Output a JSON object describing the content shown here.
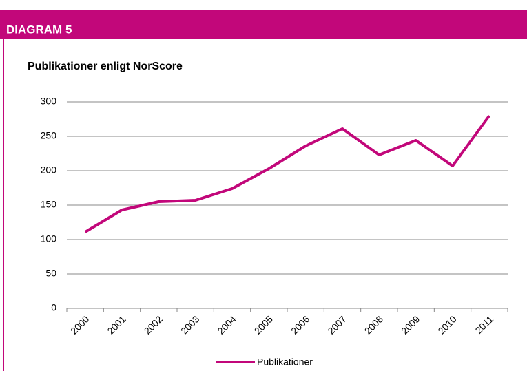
{
  "header": {
    "title": "DIAGRAM 5"
  },
  "chart_data": {
    "type": "line",
    "title": "Publikationer enligt NorScore",
    "categories": [
      "2000",
      "2001",
      "2002",
      "2003",
      "2004",
      "2005",
      "2006",
      "2007",
      "2008",
      "2009",
      "2010",
      "2011"
    ],
    "series": [
      {
        "name": "Publikationer",
        "color": "#c2077a",
        "values": [
          111,
          143,
          155,
          157,
          174,
          203,
          236,
          261,
          223,
          244,
          207,
          280
        ]
      }
    ],
    "ylim": [
      0,
      300
    ],
    "yticks": [
      0,
      50,
      100,
      150,
      200,
      250,
      300
    ],
    "grid": true,
    "legend": "bottom"
  }
}
